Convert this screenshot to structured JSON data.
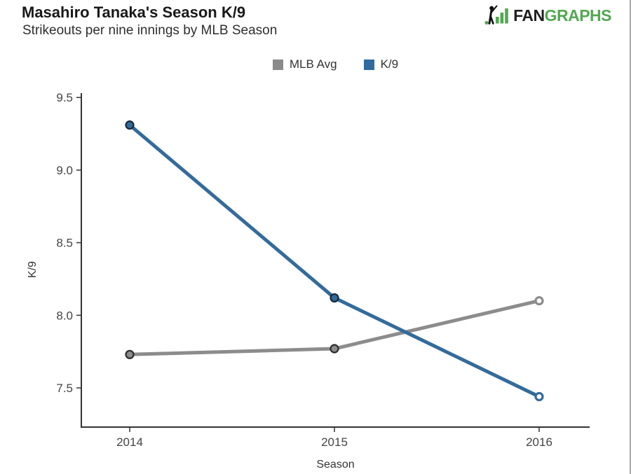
{
  "page": {
    "background": "#ffffff",
    "right_border_color": "#a8a8a8"
  },
  "header": {
    "title": "Masahiro Tanaka's Season K/9",
    "subtitle": "Strikeouts per nine innings by MLB Season"
  },
  "logo": {
    "text_black": "FAN",
    "text_green": "GRAPHS",
    "green": "#53a851",
    "black": "#1f1f1f",
    "icon": "fangraphs-batter-bars-icon"
  },
  "legend": {
    "items": [
      {
        "label": "MLB Avg",
        "color": "#8a8a8a"
      },
      {
        "label": "K/9",
        "color": "#2f6b9c"
      }
    ]
  },
  "chart_data": {
    "type": "line",
    "title": "Masahiro Tanaka's Season K/9",
    "subtitle": "Strikeouts per nine innings by MLB Season",
    "categories": [
      "2014",
      "2015",
      "2016"
    ],
    "series": [
      {
        "name": "MLB Avg",
        "values": [
          7.73,
          7.77,
          8.1
        ],
        "color": "#8c8c8c",
        "marker_stroke": "#2b2b2b",
        "markers": [
          "filled",
          "filled",
          "open"
        ]
      },
      {
        "name": "K/9",
        "values": [
          9.31,
          8.12,
          7.44
        ],
        "color": "#336b9b",
        "marker_stroke": "#16293c",
        "markers": [
          "filled",
          "filled",
          "open"
        ]
      }
    ],
    "xlabel": "Season",
    "ylabel": "K/9",
    "ylim": [
      7.23,
      9.53
    ],
    "yticks": [
      7.5,
      8.0,
      8.5,
      9.0,
      9.5
    ],
    "grid": false,
    "legend_position": "top-center",
    "axis_color": "#333333",
    "tick_label_color": "#444444"
  }
}
